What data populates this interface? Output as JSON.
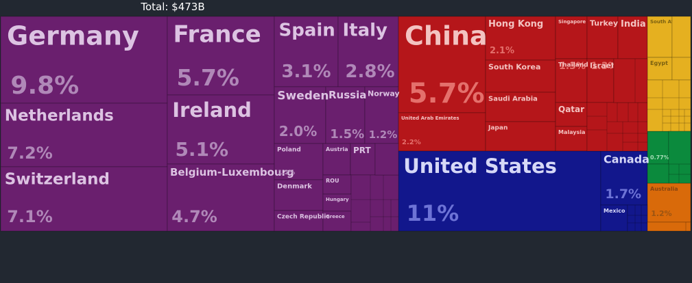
{
  "chart_data": {
    "type": "treemap",
    "title": "Total: $473B",
    "groups": [
      {
        "color": "#6a1f6e",
        "categories": [
          "Germany",
          "Netherlands",
          "Switzerland",
          "France",
          "Ireland",
          "Belgium-Luxembourg",
          "Spain",
          "Italy",
          "Sweden",
          "Russia",
          "Norway",
          "Poland",
          "Denmark",
          "Czech Republic",
          "Austria",
          "PRT",
          "ROU",
          "Hungary",
          "Greece"
        ],
        "values": [
          9.8,
          7.2,
          7.1,
          5.7,
          5.1,
          4.7,
          3.1,
          2.8,
          2.0,
          1.5,
          1.2,
          1.2,
          0.9,
          0.6,
          1.0,
          0.8,
          0.6,
          0.5,
          0.5
        ],
        "value_labels": [
          "9.8%",
          "7.2%",
          "7.1%",
          "5.7%",
          "5.1%",
          "4.7%",
          "3.1%",
          "2.8%",
          "2.0%",
          "1.5%",
          "1.2%",
          "1.2%",
          null,
          null,
          null,
          null,
          null,
          null,
          null
        ]
      },
      {
        "color": "#b5161a",
        "categories": [
          "China",
          "United Arab Emirates",
          "Hong Kong",
          "South Korea",
          "Saudi Arabia",
          "Japan",
          "Singapore",
          "Turkey",
          "India",
          "Thailand",
          "Israel",
          "Qatar",
          "Malaysia"
        ],
        "values": [
          5.7,
          2.2,
          2.1,
          1.5,
          1.4,
          1.4,
          1.3,
          1.3,
          1.2,
          1.0,
          0.9,
          0.7,
          0.7
        ],
        "value_labels": [
          "5.7%",
          "2.2%",
          "2.1%",
          null,
          null,
          null,
          "1.3%",
          "1.3%",
          "1.2%",
          null,
          null,
          null,
          null
        ]
      },
      {
        "color": "#12178c",
        "categories": [
          "United States",
          "Canada",
          "Mexico"
        ],
        "values": [
          11,
          1.7,
          0.8
        ],
        "value_labels": [
          "11%",
          "1.7%",
          null
        ]
      },
      {
        "color": "#e5b020",
        "categories": [
          "South Africa",
          "Egypt"
        ],
        "values": [
          0.4,
          0.3
        ],
        "value_labels": [
          null,
          null
        ]
      },
      {
        "color": "#0b8a3d",
        "categories": [
          null
        ],
        "values": [
          0.77
        ],
        "value_labels": [
          "0.77%"
        ]
      },
      {
        "color": "#d96a0a",
        "categories": [
          "Australia"
        ],
        "values": [
          1.2
        ],
        "value_labels": [
          "1.2%"
        ]
      }
    ]
  }
}
